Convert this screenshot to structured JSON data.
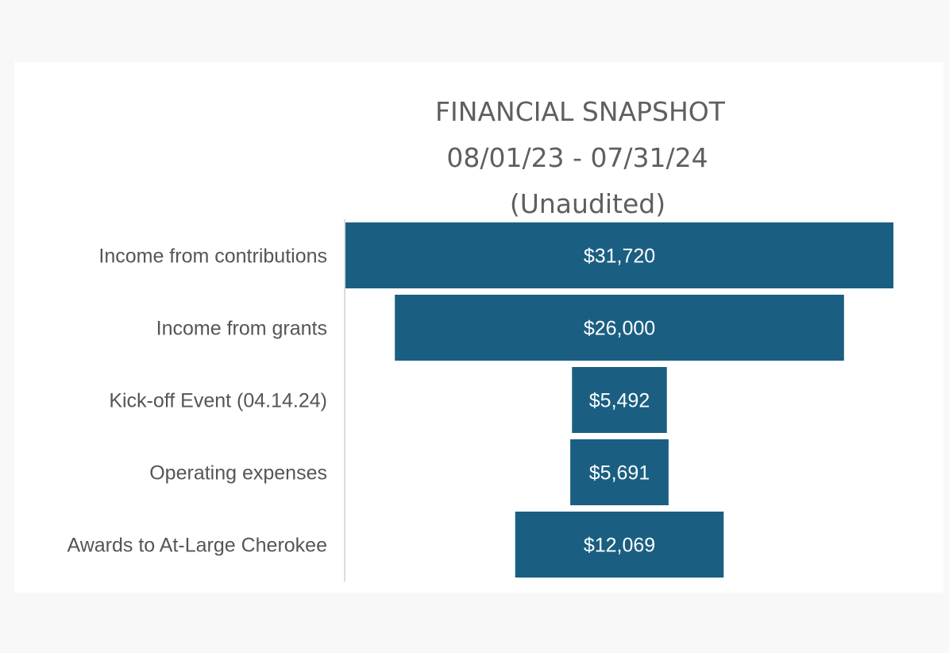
{
  "chart_data": {
    "type": "bar",
    "subtype": "funnel",
    "title": "FINANCIAL SNAPSHOT",
    "subtitle": "08/01/23 - 07/31/24",
    "note": "(Unaudited)",
    "categories": [
      "Income from contributions",
      "Income from grants",
      "Kick-off Event (04.14.24)",
      "Operating expenses",
      "Awards to At-Large Cherokee"
    ],
    "values": [
      31720,
      26000,
      5492,
      5691,
      12069
    ],
    "value_labels": [
      "$31,720",
      "$26,000",
      "$5,492",
      "$5,691",
      "$12,069"
    ],
    "bar_color": "#1a5f82",
    "grid": false,
    "legend": "none"
  }
}
